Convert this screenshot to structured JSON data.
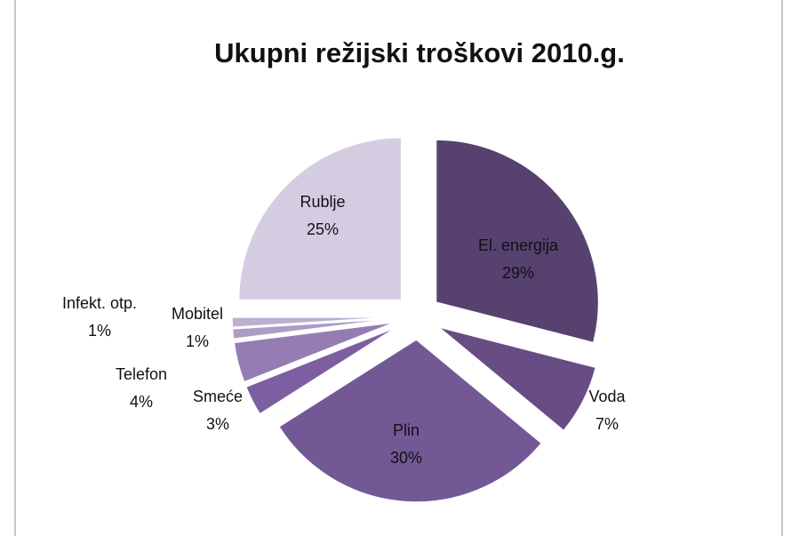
{
  "chart_data": {
    "type": "pie",
    "title": "Ukupni režijski troškovi 2010.g.",
    "categories": [
      "El. energija",
      "Voda",
      "Plin",
      "Smeće",
      "Telefon",
      "Mobitel",
      "Infekt. otp.",
      "Rublje"
    ],
    "values": [
      29,
      7,
      30,
      3,
      4,
      1,
      1,
      25
    ],
    "value_labels": [
      "29%",
      "7%",
      "30%",
      "3%",
      "4%",
      "1%",
      "1%",
      "25%"
    ],
    "colors": [
      "#56416f",
      "#674d84",
      "#735896",
      "#7d5fa1",
      "#957db4",
      "#ad9cc5",
      "#bcafd0",
      "#d4cde2"
    ]
  }
}
